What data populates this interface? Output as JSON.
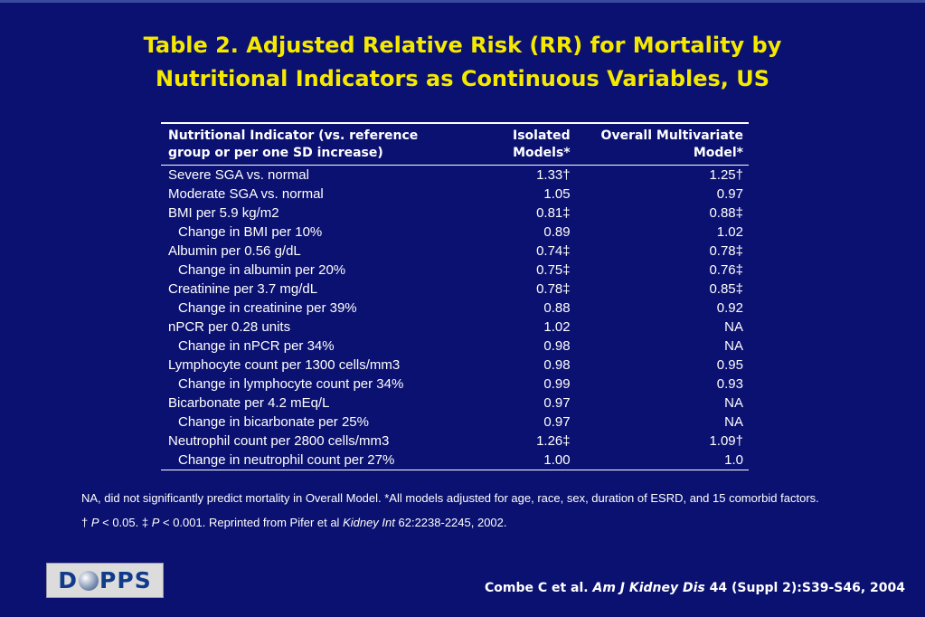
{
  "title": {
    "line1": "Table 2. Adjusted Relative Risk (RR) for Mortality by",
    "line2": "Nutritional Indicators as Continuous Variables, US"
  },
  "table": {
    "headers": {
      "col1_line1": "Nutritional Indicator (vs. reference",
      "col1_line2": "group or per one SD increase)",
      "col2_line1": "Isolated",
      "col2_line2": "Models*",
      "col3_line1": "Overall Multivariate",
      "col3_line2": "Model*"
    },
    "rows": [
      {
        "label": "Severe SGA vs. normal",
        "isolated": "1.33†",
        "overall": "1.25†",
        "indent": false
      },
      {
        "label": "Moderate SGA vs. normal",
        "isolated": "1.05",
        "overall": "0.97",
        "indent": false
      },
      {
        "label": "BMI per 5.9 kg/m2",
        "isolated": "0.81‡",
        "overall": "0.88‡",
        "indent": false
      },
      {
        "label": "Change in BMI per 10%",
        "isolated": "0.89",
        "overall": "1.02",
        "indent": true
      },
      {
        "label": "Albumin per 0.56 g/dL",
        "isolated": "0.74‡",
        "overall": "0.78‡",
        "indent": false
      },
      {
        "label": "Change in albumin per 20%",
        "isolated": "0.75‡",
        "overall": "0.76‡",
        "indent": true
      },
      {
        "label": "Creatinine per 3.7 mg/dL",
        "isolated": "0.78‡",
        "overall": "0.85‡",
        "indent": false
      },
      {
        "label": "Change in creatinine per 39%",
        "isolated": "0.88",
        "overall": "0.92",
        "indent": true
      },
      {
        "label": "nPCR per 0.28 units",
        "isolated": "1.02",
        "overall": "NA",
        "indent": false
      },
      {
        "label": "Change in nPCR per 34%",
        "isolated": "0.98",
        "overall": "NA",
        "indent": true
      },
      {
        "label": "Lymphocyte count per 1300 cells/mm3",
        "isolated": "0.98",
        "overall": "0.95",
        "indent": false
      },
      {
        "label": "Change in lymphocyte count per 34%",
        "isolated": "0.99",
        "overall": "0.93",
        "indent": true
      },
      {
        "label": "Bicarbonate per 4.2 mEq/L",
        "isolated": "0.97",
        "overall": "NA",
        "indent": false
      },
      {
        "label": "Change in bicarbonate per 25%",
        "isolated": "0.97",
        "overall": "NA",
        "indent": true
      },
      {
        "label": "Neutrophil count per 2800 cells/mm3",
        "isolated": "1.26‡",
        "overall": "1.09†",
        "indent": false
      },
      {
        "label": "Change in neutrophil count per 27%",
        "isolated": "1.00",
        "overall": "1.0",
        "indent": true
      }
    ]
  },
  "footnotes": {
    "note1": "NA, did not significantly predict mortality in Overall Model. *All models adjusted for age, race, sex, duration of ESRD, and 15 comorbid factors.",
    "note2_part1": "† ",
    "note2_p1": "P",
    "note2_part2": " < 0.05. ‡ ",
    "note2_p2": "P",
    "note2_part3": " < 0.001. Reprinted from Pifer et al ",
    "note2_journal": "Kidney Int",
    "note2_part4": " 62:2238-2245, 2002."
  },
  "logo": {
    "text_before": "D",
    "text_after": "PPS"
  },
  "citation": {
    "authors": "Combe C et al. ",
    "journal": "Am J Kidney Dis",
    "details": " 44 (Suppl 2):S39-S46, 2004"
  },
  "colors": {
    "background": "#0b1170",
    "title": "#f5e900",
    "text": "#ffffff"
  }
}
